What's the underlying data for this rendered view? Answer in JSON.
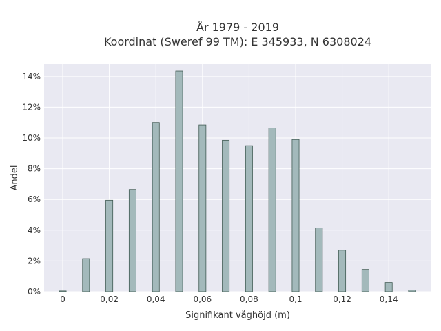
{
  "chart_data": {
    "type": "bar",
    "title_line1": "År 1979 - 2019",
    "title_line2": "Koordinat (Sweref 99 TM): E 345933, N 6308024",
    "xlabel": "Signifikant våghöjd (m)",
    "ylabel": "Andel",
    "x": [
      0,
      0.01,
      0.02,
      0.03,
      0.04,
      0.05,
      0.06,
      0.07,
      0.08,
      0.09,
      0.1,
      0.11,
      0.12,
      0.13,
      0.14,
      0.15
    ],
    "values": [
      0.05,
      2.15,
      5.95,
      6.65,
      11.0,
      14.35,
      10.85,
      9.85,
      9.5,
      10.65,
      9.9,
      4.15,
      2.7,
      1.45,
      0.6,
      0.1
    ],
    "xlim": [
      -0.008,
      0.158
    ],
    "ylim": [
      0,
      14.8
    ],
    "x_ticks": [
      0,
      0.02,
      0.04,
      0.06,
      0.08,
      0.1,
      0.12,
      0.14
    ],
    "x_tick_labels": [
      "0",
      "0,02",
      "0,04",
      "0,06",
      "0,08",
      "0,1",
      "0,12",
      "0,14"
    ],
    "y_ticks": [
      0,
      2,
      4,
      6,
      8,
      10,
      12,
      14
    ],
    "y_tick_labels": [
      "0%",
      "2%",
      "4%",
      "6%",
      "8%",
      "10%",
      "12%",
      "14%"
    ],
    "grid": true,
    "bar_color": "#a3b9bb",
    "bar_edge_color": "#3f5a52",
    "background_color": "#e9e9f2"
  }
}
